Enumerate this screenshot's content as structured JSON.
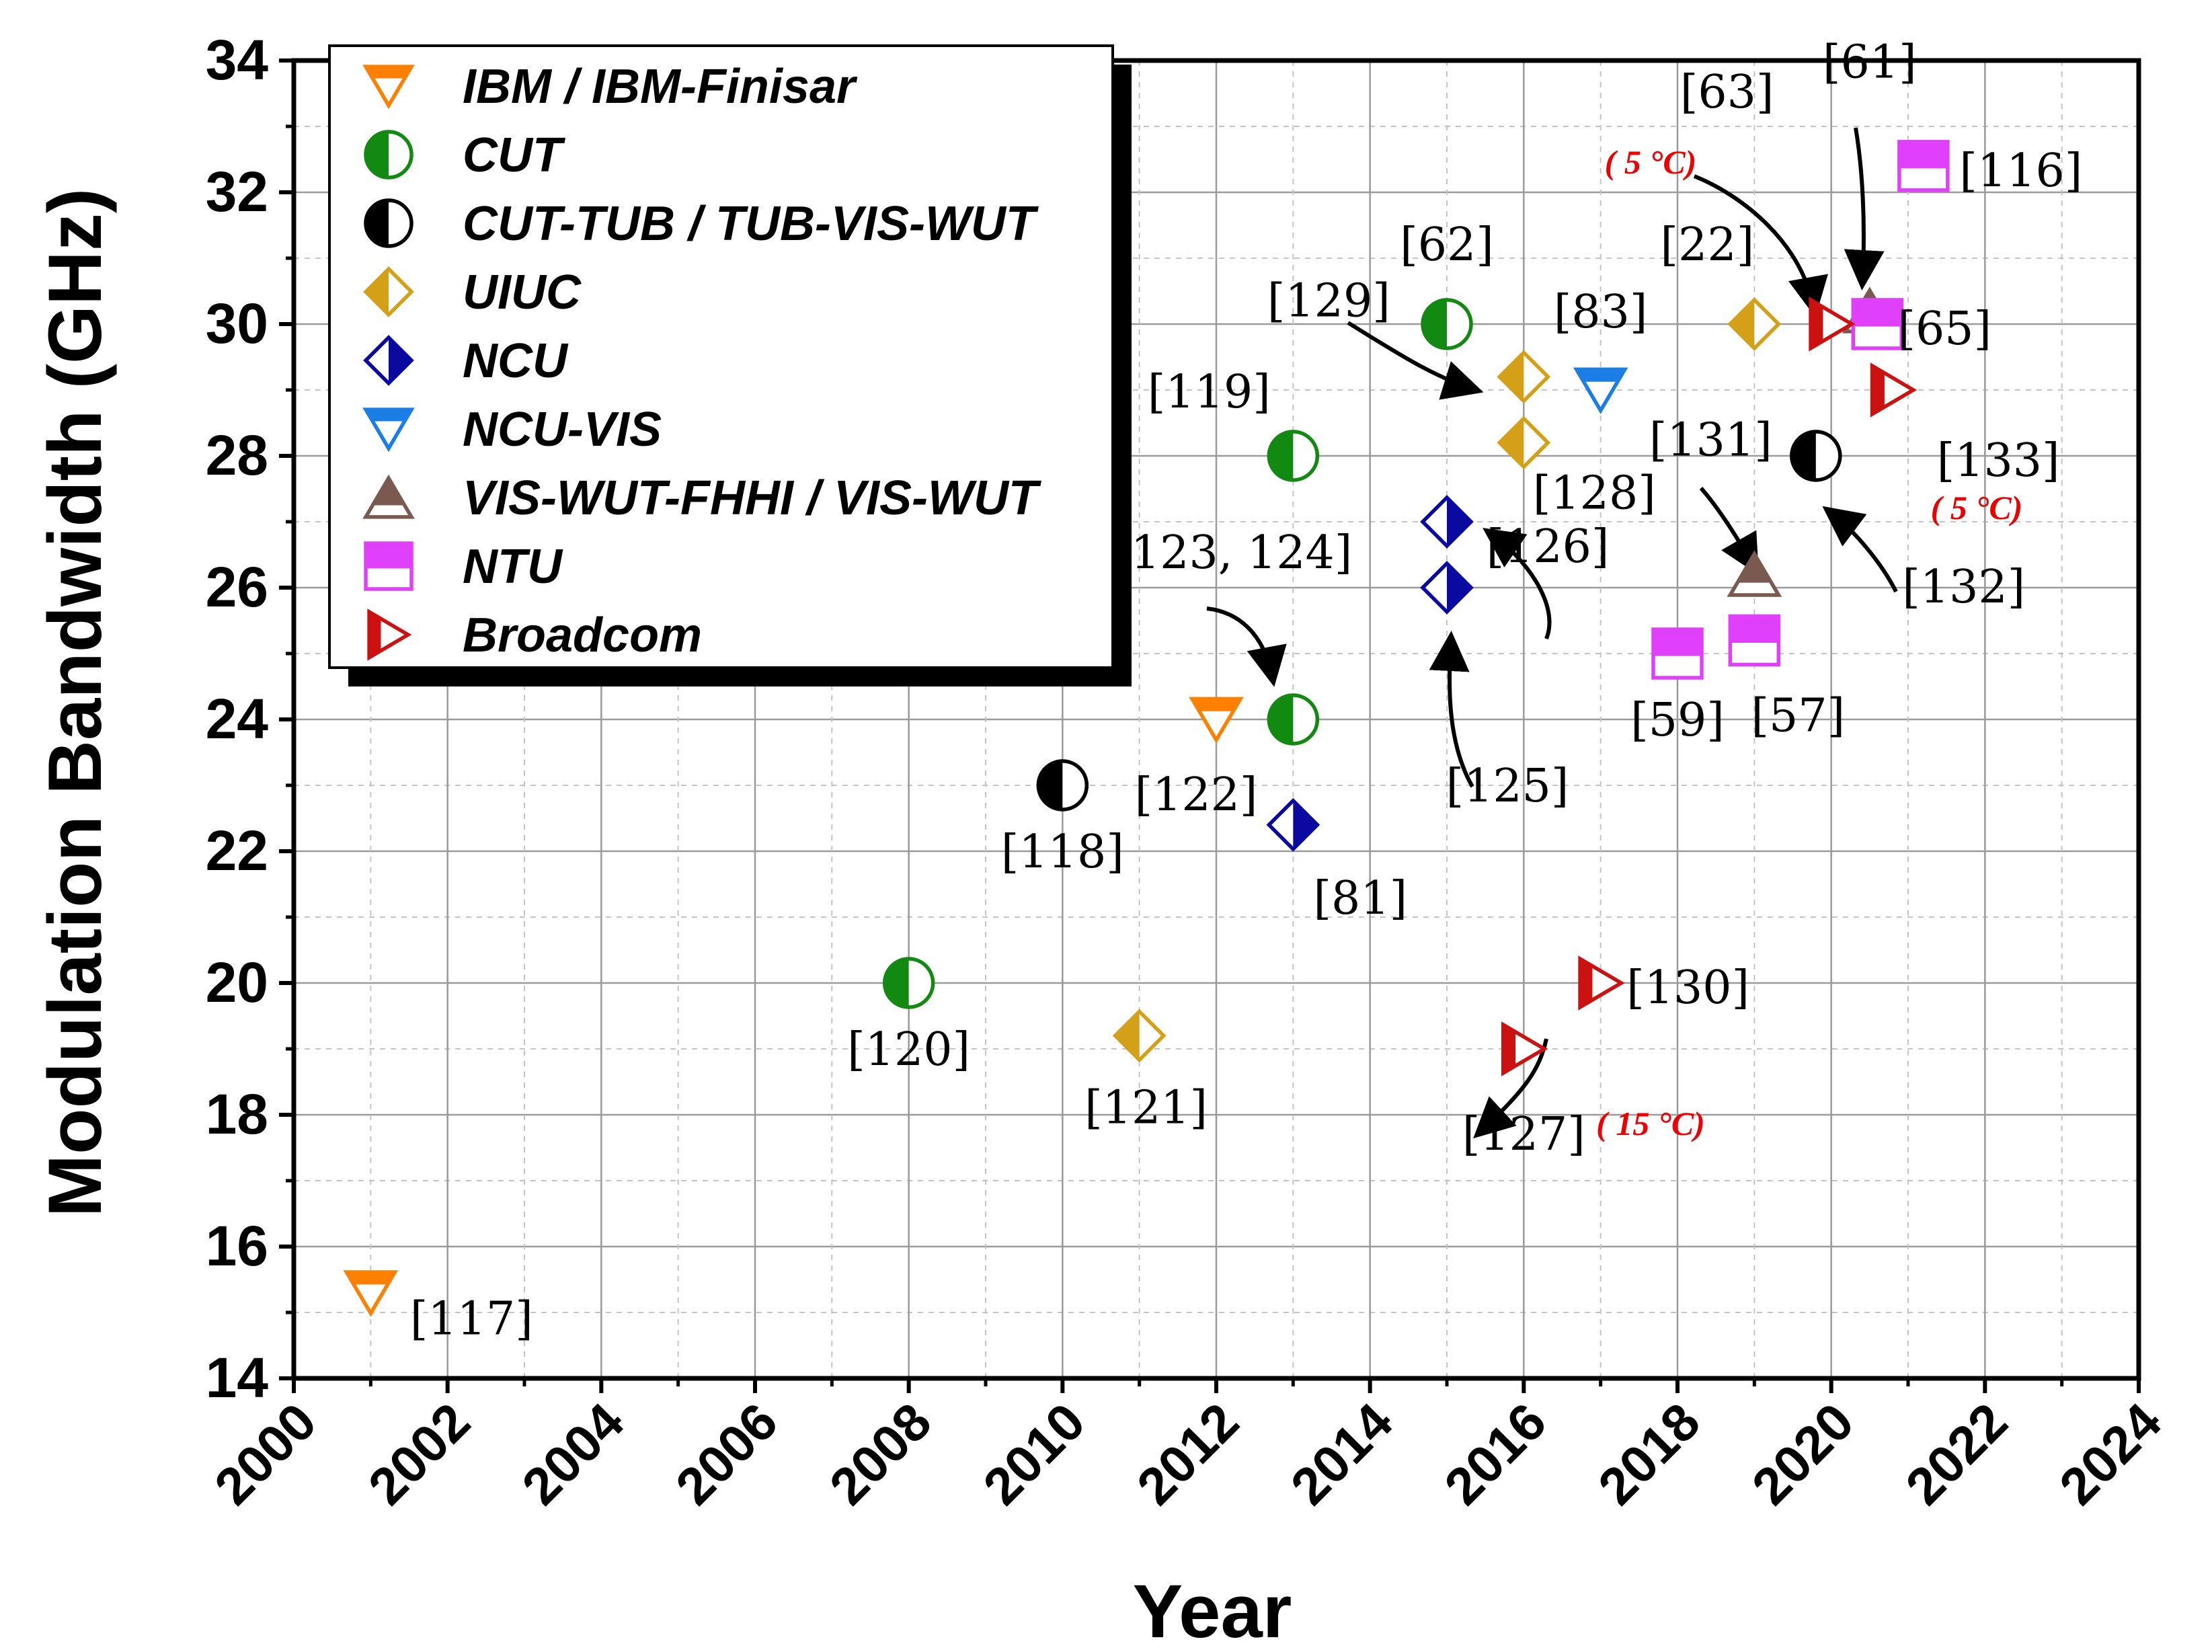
{
  "chart_data": {
    "type": "scatter",
    "xlabel": "Year",
    "ylabel": "Modulation Bandwidth (GHz)",
    "xlim": [
      2000,
      2024
    ],
    "ylim": [
      14,
      34
    ],
    "xticks": [
      "2000",
      "2002",
      "2004",
      "2006",
      "2008",
      "2010",
      "2012",
      "2014",
      "2016",
      "2018",
      "2020",
      "2022",
      "2024"
    ],
    "yticks": [
      "14",
      "16",
      "18",
      "20",
      "22",
      "24",
      "26",
      "28",
      "30",
      "32",
      "34"
    ],
    "grid": true,
    "legend_position": "top-left",
    "series": [
      {
        "name": "IBM / IBM-Finisar",
        "marker": "tri-down",
        "color": "#ff8000",
        "points": [
          {
            "x": 2001,
            "y": 15.3,
            "label": "[117]"
          },
          {
            "x": 2012,
            "y": 24,
            "label": "[122]"
          }
        ]
      },
      {
        "name": "CUT",
        "marker": "circle",
        "color": "#128a12",
        "points": [
          {
            "x": 2008,
            "y": 20,
            "label": "[120]"
          },
          {
            "x": 2013,
            "y": 28,
            "label": "[119]"
          },
          {
            "x": 2013,
            "y": 24,
            "label": "[123, 124]"
          },
          {
            "x": 2015,
            "y": 30,
            "label": "[62]"
          }
        ]
      },
      {
        "name": "CUT-TUB / TUB-VIS-WUT",
        "marker": "circle",
        "color": "#000000",
        "points": [
          {
            "x": 2010,
            "y": 23,
            "label": "[118]"
          },
          {
            "x": 2019.8,
            "y": 28,
            "label": "[132]"
          }
        ]
      },
      {
        "name": "UIUC",
        "marker": "diamond",
        "color": "#d4a017",
        "points": [
          {
            "x": 2011,
            "y": 19.2,
            "label": "[121]"
          },
          {
            "x": 2016,
            "y": 29.2,
            "label": "[129]"
          },
          {
            "x": 2016,
            "y": 28.2,
            "label": "[128]"
          },
          {
            "x": 2019,
            "y": 30,
            "label": "[22]"
          }
        ]
      },
      {
        "name": "NCU",
        "marker": "diamond",
        "color": "#0a0aa0",
        "points": [
          {
            "x": 2013,
            "y": 22.4,
            "label": "[81]"
          },
          {
            "x": 2015,
            "y": 27,
            "label": "[126]"
          },
          {
            "x": 2015,
            "y": 26,
            "label": "[125]"
          }
        ]
      },
      {
        "name": "NCU-VIS",
        "marker": "tri-down",
        "color": "#1a7ee6",
        "points": [
          {
            "x": 2017,
            "y": 29,
            "label": "[83]"
          }
        ]
      },
      {
        "name": "VIS-WUT-FHHI / VIS-WUT",
        "marker": "tri-up",
        "color": "#7a5a50",
        "points": [
          {
            "x": 2019,
            "y": 26.2,
            "label": "[131]"
          },
          {
            "x": 2020.5,
            "y": 30.2,
            "label": "[61]"
          }
        ]
      },
      {
        "name": "NTU",
        "marker": "square",
        "color": "#e040fb",
        "points": [
          {
            "x": 2018,
            "y": 25,
            "label": "[59]"
          },
          {
            "x": 2019,
            "y": 25.2,
            "label": "[57]"
          },
          {
            "x": 2020.6,
            "y": 30,
            "label": "[65]"
          },
          {
            "x": 2021.2,
            "y": 32.4,
            "label": "[116]"
          }
        ]
      },
      {
        "name": "Broadcom",
        "marker": "tri-right",
        "color": "#cc1111",
        "points": [
          {
            "x": 2016,
            "y": 19,
            "label": "[127]"
          },
          {
            "x": 2017,
            "y": 20,
            "label": "[130]"
          },
          {
            "x": 2020,
            "y": 30,
            "label": "[63]"
          },
          {
            "x": 2020.8,
            "y": 29,
            "label": "[133]"
          }
        ]
      }
    ],
    "annotations": [
      "( 5 °C)",
      "( 5 °C)",
      "( 15 °C)"
    ]
  }
}
